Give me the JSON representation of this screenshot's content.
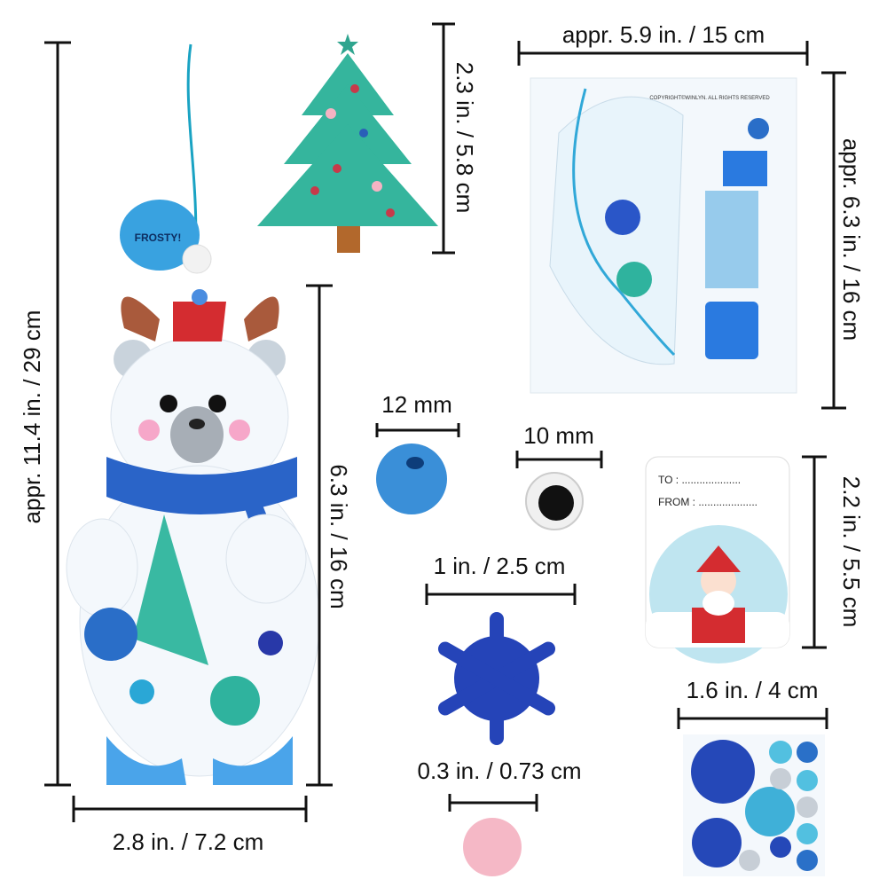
{
  "dimensions": [
    {
      "label": "appr. 11.4 in. / 29 cm"
    },
    {
      "label": "6.3 in. / 16 cm"
    },
    {
      "label": "2.8 in. / 7.2 cm"
    },
    {
      "label": "2.3 in. / 5.8 cm"
    },
    {
      "label": "appr. 5.9 in. / 15 cm"
    },
    {
      "label": "appr. 6.3 in. / 16 cm"
    },
    {
      "label": "12 mm"
    },
    {
      "label": "10 mm"
    },
    {
      "label": "1 in. / 2.5 cm"
    },
    {
      "label": "0.3 in. / 0.73 cm"
    },
    {
      "label": "2.2 in. / 5.5 cm"
    },
    {
      "label": "1.6 in. / 4 cm"
    }
  ],
  "bear": {
    "speech": "FROSTY!"
  },
  "package": {
    "copyright": "COPYRIGHT©WINLYN. ALL RIGHTS RESERVED"
  },
  "gift_tag": {
    "to": "TO : ....................",
    "from": "FROM : ...................."
  }
}
